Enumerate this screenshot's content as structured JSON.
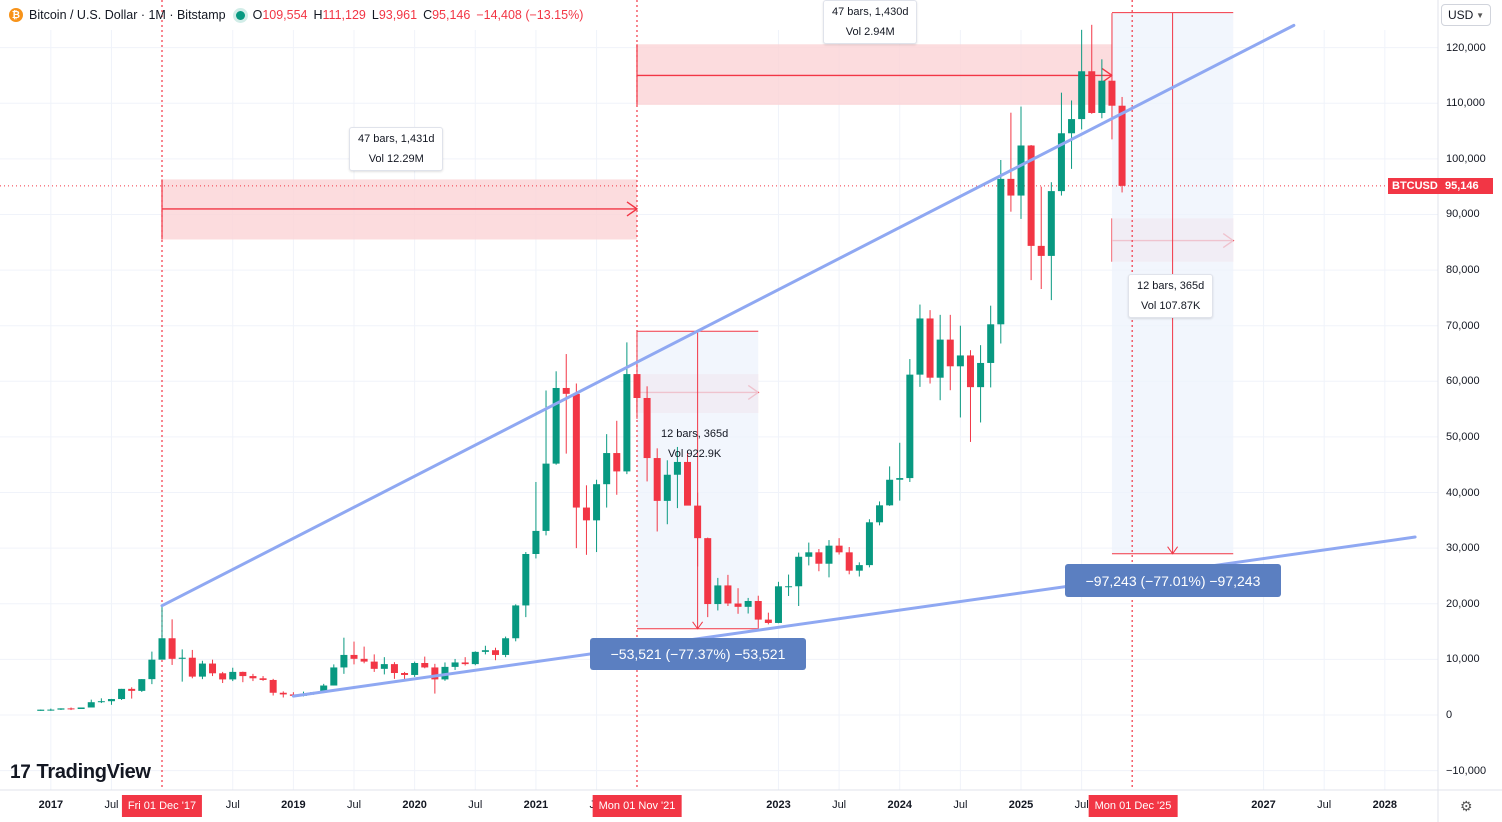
{
  "header": {
    "symbol_title": "Bitcoin / U.S. Dollar · 1M · Bitstamp",
    "ohlc": [
      {
        "k": "O",
        "v": "109,554"
      },
      {
        "k": "H",
        "v": "111,129"
      },
      {
        "k": "L",
        "v": "93,961"
      },
      {
        "k": "C",
        "v": "95,146"
      }
    ],
    "change": "−14,408 (−13.15%)",
    "currency": "USD",
    "btc_icon_glyph": "₿"
  },
  "brand": {
    "name": "TradingView",
    "mark": "17"
  },
  "price_tag": {
    "symbol": "BTCUSD",
    "value": "95,146"
  },
  "y_axis_ticks": [
    "120,000",
    "110,000",
    "100,000",
    "90,000",
    "80,000",
    "70,000",
    "60,000",
    "50,000",
    "40,000",
    "30,000",
    "20,000",
    "10,000",
    "0",
    "−10,000"
  ],
  "x_axis_ticks": [
    {
      "label": "2017",
      "bold": true
    },
    {
      "label": "Jul",
      "bold": false
    },
    {
      "label": "Jul",
      "bold": false
    },
    {
      "label": "2019",
      "bold": true
    },
    {
      "label": "Jul",
      "bold": false
    },
    {
      "label": "2020",
      "bold": true
    },
    {
      "label": "Jul",
      "bold": false
    },
    {
      "label": "2021",
      "bold": true
    },
    {
      "label": "Jul",
      "bold": false
    },
    {
      "label": "2023",
      "bold": true
    },
    {
      "label": "Jul",
      "bold": false
    },
    {
      "label": "2024",
      "bold": true
    },
    {
      "label": "Jul",
      "bold": false
    },
    {
      "label": "2025",
      "bold": true
    },
    {
      "label": "Jul",
      "bold": false
    },
    {
      "label": "2027",
      "bold": true
    },
    {
      "label": "Jul",
      "bold": false
    },
    {
      "label": "2028",
      "bold": true
    }
  ],
  "x_flags": [
    "Fri 01 Dec '17",
    "Mon 01 Nov '21",
    "Mon 01 Dec '25"
  ],
  "annotations": {
    "range1": {
      "line1": "47 bars, 1,431d",
      "line2": "Vol 12.29M"
    },
    "range2": {
      "line1": "47 bars, 1,430d",
      "line2": "Vol 2.94M"
    },
    "range3": {
      "line1": "12 bars, 365d",
      "line2": "Vol 922.9K"
    },
    "range4": {
      "line1": "12 bars, 365d",
      "line2": "Vol 107.87K"
    },
    "drop1": "−53,521 (−77.37%) −53,521",
    "drop2": "−97,243 (−77.01%) −97,243"
  },
  "chart_data": {
    "type": "candlestick",
    "title": "Bitcoin / U.S. Dollar · 1M · Bitstamp",
    "ylim": [
      -10000,
      120000
    ],
    "colors": {
      "up": "#089981",
      "down": "#f23645",
      "trendline": "#8fa8f2",
      "range_fill": "#fbd3d6",
      "range_line": "#f23645",
      "drop_fill": "#eef3fc"
    },
    "ohlc_columns": [
      "month",
      "open",
      "high",
      "low",
      "close"
    ],
    "candles": [
      [
        "2016-12",
        750,
        980,
        750,
        960
      ],
      [
        "2017-01",
        960,
        1150,
        760,
        970
      ],
      [
        "2017-02",
        970,
        1200,
        910,
        1190
      ],
      [
        "2017-03",
        1190,
        1350,
        890,
        1080
      ],
      [
        "2017-04",
        1080,
        1350,
        1080,
        1350
      ],
      [
        "2017-05",
        1350,
        2760,
        1350,
        2300
      ],
      [
        "2017-06",
        2300,
        3000,
        2150,
        2480
      ],
      [
        "2017-07",
        2480,
        2900,
        1830,
        2870
      ],
      [
        "2017-08",
        2870,
        4700,
        2700,
        4700
      ],
      [
        "2017-09",
        4700,
        4980,
        2950,
        4340
      ],
      [
        "2017-10",
        4340,
        6450,
        4150,
        6450
      ],
      [
        "2017-11",
        6450,
        11400,
        5550,
        9950
      ],
      [
        "2017-12",
        9950,
        19650,
        9950,
        13800
      ],
      [
        "2018-01",
        13800,
        17200,
        9000,
        10100
      ],
      [
        "2018-02",
        10100,
        11800,
        6000,
        10300
      ],
      [
        "2018-03",
        10300,
        11700,
        6600,
        6900
      ],
      [
        "2018-04",
        6900,
        9750,
        6450,
        9250
      ],
      [
        "2018-05",
        9250,
        9950,
        7000,
        7500
      ],
      [
        "2018-06",
        7500,
        7750,
        5750,
        6400
      ],
      [
        "2018-07",
        6400,
        8500,
        6100,
        7750
      ],
      [
        "2018-08",
        7750,
        7800,
        5900,
        7000
      ],
      [
        "2018-09",
        7000,
        7400,
        6100,
        6600
      ],
      [
        "2018-10",
        6600,
        7000,
        6150,
        6300
      ],
      [
        "2018-11",
        6300,
        6500,
        3500,
        4000
      ],
      [
        "2018-12",
        4000,
        4250,
        3150,
        3700
      ],
      [
        "2019-01",
        3700,
        4100,
        3350,
        3450
      ],
      [
        "2019-02",
        3450,
        4200,
        3350,
        3800
      ],
      [
        "2019-03",
        3800,
        4150,
        3650,
        4100
      ],
      [
        "2019-04",
        4100,
        5600,
        4050,
        5300
      ],
      [
        "2019-05",
        5300,
        9100,
        5300,
        8550
      ],
      [
        "2019-06",
        8550,
        13900,
        7400,
        10800
      ],
      [
        "2019-07",
        10800,
        13200,
        9100,
        10100
      ],
      [
        "2019-08",
        10100,
        12300,
        9300,
        9600
      ],
      [
        "2019-09",
        9600,
        10900,
        7750,
        8300
      ],
      [
        "2019-10",
        8300,
        10400,
        7300,
        9150
      ],
      [
        "2019-11",
        9150,
        9500,
        6500,
        7550
      ],
      [
        "2019-12",
        7550,
        7750,
        6450,
        7200
      ],
      [
        "2020-01",
        7200,
        9600,
        6850,
        9350
      ],
      [
        "2020-02",
        9350,
        10500,
        8400,
        8550
      ],
      [
        "2020-03",
        8550,
        9200,
        3850,
        6400
      ],
      [
        "2020-04",
        6400,
        9450,
        6150,
        8650
      ],
      [
        "2020-05",
        8650,
        10080,
        8100,
        9450
      ],
      [
        "2020-06",
        9450,
        10400,
        8900,
        9150
      ],
      [
        "2020-07",
        9150,
        11450,
        8950,
        11350
      ],
      [
        "2020-08",
        11350,
        12450,
        10900,
        11650
      ],
      [
        "2020-09",
        11650,
        12100,
        9850,
        10800
      ],
      [
        "2020-10",
        10800,
        14100,
        10400,
        13800
      ],
      [
        "2020-11",
        13800,
        19900,
        13250,
        19700
      ],
      [
        "2020-12",
        19700,
        29300,
        17600,
        28950
      ],
      [
        "2021-01",
        28950,
        41900,
        28150,
        33100
      ],
      [
        "2021-02",
        33100,
        58350,
        32300,
        45200
      ],
      [
        "2021-03",
        45200,
        61800,
        45000,
        58800
      ],
      [
        "2021-04",
        58800,
        64900,
        47000,
        57750
      ],
      [
        "2021-05",
        57750,
        59600,
        30000,
        37300
      ],
      [
        "2021-06",
        37300,
        41300,
        28800,
        35000
      ],
      [
        "2021-07",
        35000,
        42300,
        29300,
        41500
      ],
      [
        "2021-08",
        41500,
        50500,
        37300,
        47100
      ],
      [
        "2021-09",
        47100,
        52900,
        39600,
        43800
      ],
      [
        "2021-10",
        43800,
        67000,
        43300,
        61300
      ],
      [
        "2021-11",
        61300,
        69000,
        53250,
        57000
      ],
      [
        "2021-12",
        57000,
        59100,
        42000,
        46200
      ],
      [
        "2022-01",
        46200,
        47950,
        33000,
        38500
      ],
      [
        "2022-02",
        38500,
        45800,
        34300,
        43200
      ],
      [
        "2022-03",
        43200,
        48200,
        37200,
        45500
      ],
      [
        "2022-04",
        45500,
        47400,
        37700,
        37650
      ],
      [
        "2022-05",
        37650,
        40000,
        26700,
        31800
      ],
      [
        "2022-06",
        31800,
        31900,
        17600,
        19950
      ],
      [
        "2022-07",
        19950,
        24650,
        18800,
        23300
      ],
      [
        "2022-08",
        23300,
        25200,
        19600,
        20050
      ],
      [
        "2022-09",
        20050,
        22800,
        18200,
        19450
      ],
      [
        "2022-10",
        19450,
        21050,
        18250,
        20500
      ],
      [
        "2022-11",
        20500,
        21450,
        15500,
        17150
      ],
      [
        "2022-12",
        17150,
        18400,
        16300,
        16550
      ],
      [
        "2023-01",
        16550,
        23950,
        16500,
        23140
      ],
      [
        "2023-02",
        23140,
        25250,
        21400,
        23150
      ],
      [
        "2023-03",
        23150,
        29200,
        19600,
        28450
      ],
      [
        "2023-04",
        28450,
        31000,
        26900,
        29250
      ],
      [
        "2023-05",
        29250,
        29850,
        25850,
        27200
      ],
      [
        "2023-06",
        27200,
        31450,
        24750,
        30450
      ],
      [
        "2023-07",
        30450,
        31800,
        28850,
        29250
      ],
      [
        "2023-08",
        29250,
        30200,
        25300,
        25950
      ],
      [
        "2023-09",
        25950,
        27450,
        24900,
        26950
      ],
      [
        "2023-10",
        26950,
        35200,
        26550,
        34650
      ],
      [
        "2023-11",
        34650,
        38400,
        34100,
        37700
      ],
      [
        "2023-12",
        37700,
        44700,
        37600,
        42300
      ],
      [
        "2024-01",
        42300,
        48950,
        38550,
        42600
      ],
      [
        "2024-02",
        42600,
        64000,
        41900,
        61200
      ],
      [
        "2024-03",
        61200,
        73800,
        59000,
        71300
      ],
      [
        "2024-04",
        71300,
        72800,
        59600,
        60650
      ],
      [
        "2024-05",
        60650,
        71950,
        56600,
        67500
      ],
      [
        "2024-06",
        67500,
        71950,
        58400,
        62700
      ],
      [
        "2024-07",
        62700,
        70000,
        53500,
        64650
      ],
      [
        "2024-08",
        64650,
        65600,
        49100,
        58950
      ],
      [
        "2024-09",
        58950,
        66500,
        52600,
        63300
      ],
      [
        "2024-10",
        63300,
        73600,
        58900,
        70250
      ],
      [
        "2024-11",
        70250,
        99800,
        66800,
        96400
      ],
      [
        "2024-12",
        96400,
        108300,
        90500,
        93400
      ],
      [
        "2025-01",
        93400,
        109400,
        89200,
        102400
      ],
      [
        "2025-02",
        102400,
        102500,
        78200,
        84350
      ],
      [
        "2025-03",
        84350,
        95000,
        76600,
        82550
      ],
      [
        "2025-04",
        82550,
        95800,
        74600,
        94200
      ],
      [
        "2025-05",
        94200,
        111900,
        93400,
        104600
      ],
      [
        "2025-06",
        104600,
        110500,
        98200,
        107150
      ],
      [
        "2025-07",
        107150,
        123200,
        105300,
        115750
      ],
      [
        "2025-08",
        115750,
        124100,
        108100,
        108250
      ],
      [
        "2025-09",
        108250,
        117900,
        107300,
        114050
      ],
      [
        "2025-10",
        114050,
        126200,
        103500,
        109554
      ],
      [
        "2025-11",
        109554,
        111129,
        93961,
        95146
      ]
    ],
    "trendlines": [
      {
        "from": [
          "2017-12",
          19650
        ],
        "to": [
          "2027-04",
          124000
        ]
      },
      {
        "from": [
          "2019-01",
          3400
        ],
        "to": [
          "2028-04",
          32000
        ]
      }
    ],
    "date_ranges": [
      {
        "from": "2017-12",
        "to": "2021-11",
        "price_low": 85500,
        "price_high": 96300,
        "price": 91000
      },
      {
        "from": "2021-11",
        "to": "2025-10",
        "price_low": 109700,
        "price_high": 120600,
        "price": 115000
      },
      {
        "from": "2021-11",
        "to": "2022-11",
        "price_low": 54300,
        "price_high": 61300,
        "price": 58000
      },
      {
        "from": "2025-10",
        "to": "2026-10",
        "price_low": 81500,
        "price_high": 89300,
        "price": 85300
      }
    ],
    "drops": [
      {
        "from": "2021-11",
        "to": "2022-11",
        "price_from": 69000,
        "price_to": 15500
      },
      {
        "from": "2025-10",
        "to": "2026-10",
        "price_from": 126300,
        "price_to": 29000
      }
    ],
    "x_markers": [
      "2017-12",
      "2021-11",
      "2025-12"
    ],
    "last_price": 95146
  }
}
